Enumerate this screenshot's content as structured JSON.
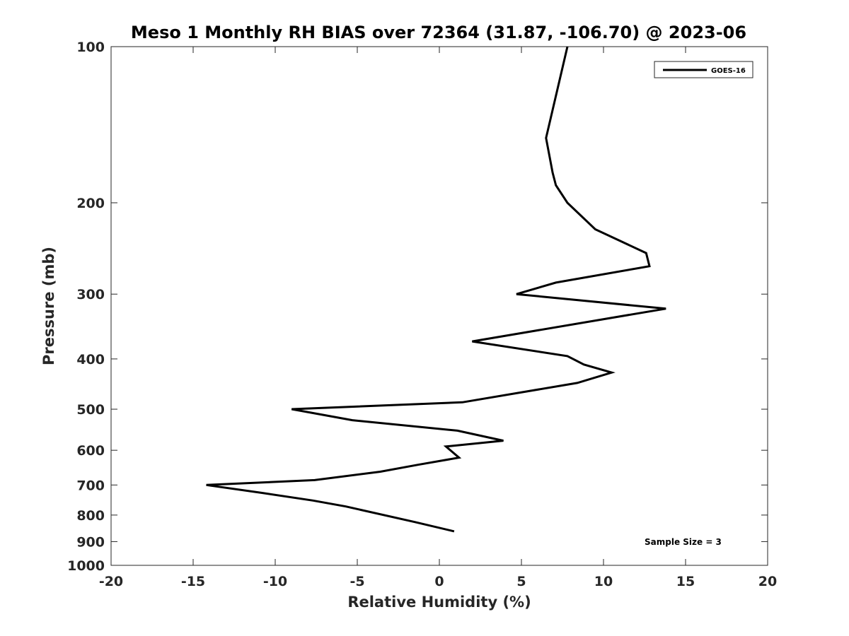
{
  "chart_data": {
    "type": "line",
    "title": "Meso 1 Monthly RH BIAS over 72364 (31.87, -106.70) @ 2023-06",
    "xlabel": "Relative Humidity (%)",
    "ylabel": "Pressure (mb)",
    "xlim": [
      -20,
      20
    ],
    "ylim": [
      100,
      1000
    ],
    "y_scale": "log",
    "y_reversed": true,
    "x_ticks": [
      -20,
      -15,
      -10,
      -5,
      0,
      5,
      10,
      15,
      20
    ],
    "x_tick_labels": [
      "-20",
      "-15",
      "-10",
      "-5",
      "0",
      "5",
      "10",
      "15",
      "20"
    ],
    "y_ticks": [
      100,
      200,
      300,
      400,
      500,
      600,
      700,
      800,
      900,
      1000
    ],
    "y_tick_labels": [
      "100",
      "200",
      "300",
      "400",
      "500",
      "600",
      "700",
      "800",
      "900",
      "1000"
    ],
    "grid": false,
    "legend_position": "top-right",
    "annotation": "Sample Size = 3",
    "series": [
      {
        "name": "GOES-16",
        "color": "#000000",
        "points": [
          {
            "x": 7.8,
            "y": 100
          },
          {
            "x": 6.5,
            "y": 150
          },
          {
            "x": 6.9,
            "y": 175
          },
          {
            "x": 7.1,
            "y": 185
          },
          {
            "x": 7.8,
            "y": 200
          },
          {
            "x": 9.5,
            "y": 225
          },
          {
            "x": 12.6,
            "y": 250
          },
          {
            "x": 12.8,
            "y": 265
          },
          {
            "x": 7.1,
            "y": 285
          },
          {
            "x": 4.7,
            "y": 300
          },
          {
            "x": 13.8,
            "y": 320
          },
          {
            "x": 2.0,
            "y": 370
          },
          {
            "x": 7.8,
            "y": 395
          },
          {
            "x": 8.8,
            "y": 410
          },
          {
            "x": 10.5,
            "y": 425
          },
          {
            "x": 8.4,
            "y": 445
          },
          {
            "x": 1.4,
            "y": 485
          },
          {
            "x": -9.0,
            "y": 500
          },
          {
            "x": -5.3,
            "y": 525
          },
          {
            "x": 1.1,
            "y": 550
          },
          {
            "x": 3.9,
            "y": 575
          },
          {
            "x": 0.4,
            "y": 590
          },
          {
            "x": 1.2,
            "y": 620
          },
          {
            "x": -1.3,
            "y": 640
          },
          {
            "x": -3.6,
            "y": 660
          },
          {
            "x": -7.6,
            "y": 685
          },
          {
            "x": -14.2,
            "y": 700
          },
          {
            "x": -10.8,
            "y": 725
          },
          {
            "x": -7.7,
            "y": 750
          },
          {
            "x": -5.7,
            "y": 770
          },
          {
            "x": -1.5,
            "y": 825
          },
          {
            "x": 0.9,
            "y": 860
          }
        ]
      }
    ]
  }
}
